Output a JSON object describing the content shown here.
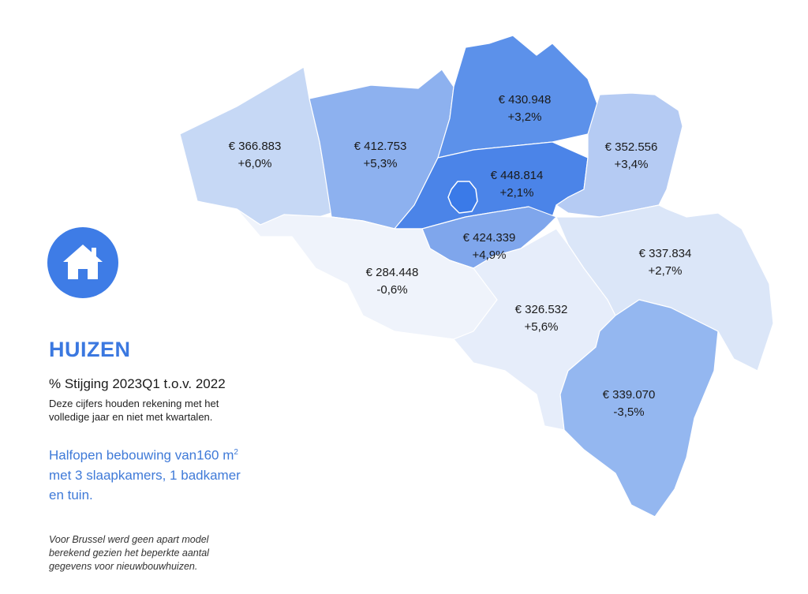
{
  "icon": {
    "name": "house-icon",
    "color": "#3e7ce6"
  },
  "panel": {
    "title": "HUIZEN",
    "subtitle": "% Stijging 2023Q1 t.o.v. 2022",
    "note_line1": "Deze cijfers houden rekening met het",
    "note_line2": "volledige jaar en niet met kwartalen.",
    "spec_line1": "Halfopen bebouwing van160 m",
    "spec_sup": "2",
    "spec_line2": "met 3 slaapkamers, 1 badkamer",
    "spec_line3": "en tuin.",
    "footnote_line1": "Voor Brussel werd geen apart model",
    "footnote_line2": "berekend gezien het beperkte aantal",
    "footnote_line3": "gegevens voor nieuwbouwhuizen."
  },
  "map": {
    "regions": [
      {
        "id": "west-vlaanderen",
        "price": "€ 366.883",
        "change": "+6,0%",
        "fill": "#c6d8f5"
      },
      {
        "id": "oost-vlaanderen",
        "price": "€ 412.753",
        "change": "+5,3%",
        "fill": "#8db1ef"
      },
      {
        "id": "antwerpen",
        "price": "€ 430.948",
        "change": "+3,2%",
        "fill": "#5c91ea"
      },
      {
        "id": "vlaams-brabant",
        "price": "€ 448.814",
        "change": "+2,1%",
        "fill": "#4b84e8"
      },
      {
        "id": "limburg",
        "price": "€ 352.556",
        "change": "+3,4%",
        "fill": "#b5cbf3"
      },
      {
        "id": "waals-brabant",
        "price": "€ 424.339",
        "change": "+4,9%",
        "fill": "#7fa6ec"
      },
      {
        "id": "henegouwen",
        "price": "€ 284.448",
        "change": "-0,6%",
        "fill": "#eff3fb"
      },
      {
        "id": "namen",
        "price": "€ 326.532",
        "change": "+5,6%",
        "fill": "#e6edfa"
      },
      {
        "id": "luik",
        "price": "€ 337.834",
        "change": "+2,7%",
        "fill": "#dbe6f8"
      },
      {
        "id": "luxemburg",
        "price": "€ 339.070",
        "change": "-3,5%",
        "fill": "#94b7f0"
      },
      {
        "id": "brussel",
        "price": "",
        "change": "",
        "fill": "#3a7ae8"
      }
    ]
  }
}
